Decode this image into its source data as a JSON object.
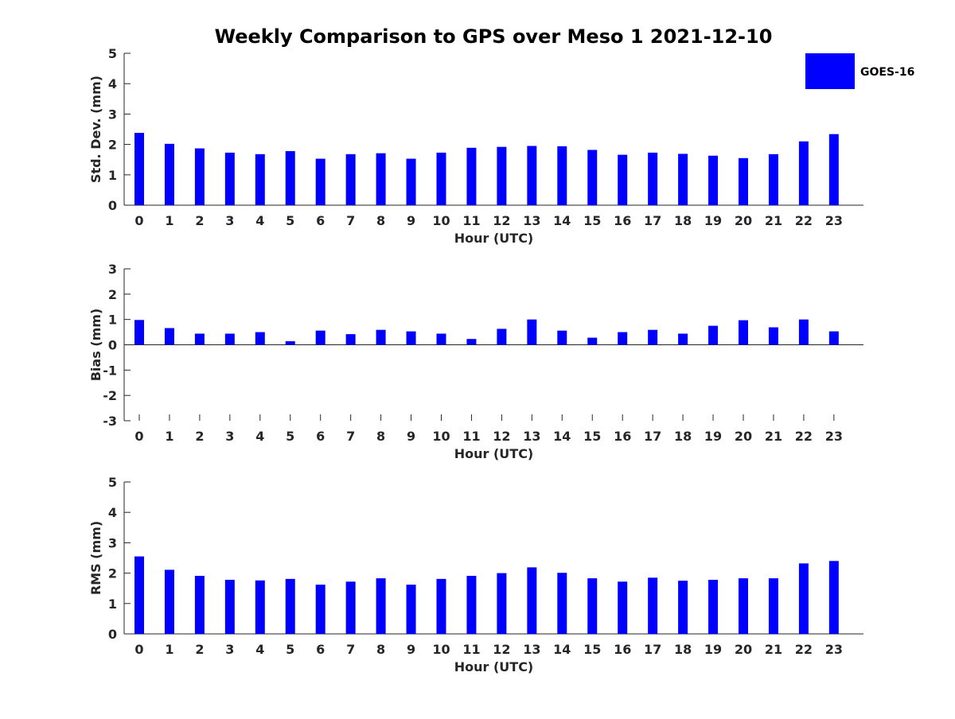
{
  "chart_data": {
    "type": "bar",
    "title": "Weekly Comparison to GPS over Meso 1 2021-12-10",
    "legend": {
      "label": "GOES-16",
      "color": "#0000ff",
      "placement": "top-right"
    },
    "categories": [
      "0",
      "1",
      "2",
      "3",
      "4",
      "5",
      "6",
      "7",
      "8",
      "9",
      "10",
      "11",
      "12",
      "13",
      "14",
      "15",
      "16",
      "17",
      "18",
      "19",
      "20",
      "21",
      "22",
      "23"
    ],
    "panels": [
      {
        "id": "stddev",
        "ylabel": "Std. Dev. (mm)",
        "xlabel": "Hour (UTC)",
        "ylim": [
          0,
          5
        ],
        "yticks": [
          "0",
          "1",
          "2",
          "3",
          "4",
          "5"
        ],
        "values": [
          2.38,
          2.02,
          1.87,
          1.73,
          1.68,
          1.78,
          1.53,
          1.68,
          1.71,
          1.53,
          1.73,
          1.89,
          1.92,
          1.95,
          1.94,
          1.82,
          1.66,
          1.73,
          1.69,
          1.63,
          1.55,
          1.68,
          2.1,
          2.34
        ]
      },
      {
        "id": "bias",
        "ylabel": "Bias (mm)",
        "xlabel": "Hour (UTC)",
        "ylim": [
          -3,
          3
        ],
        "yticks": [
          "-3",
          "-2",
          "-1",
          "0",
          "1",
          "2",
          "3"
        ],
        "values": [
          0.98,
          0.66,
          0.44,
          0.44,
          0.5,
          0.14,
          0.56,
          0.42,
          0.59,
          0.53,
          0.44,
          0.23,
          0.63,
          1.0,
          0.56,
          0.28,
          0.5,
          0.59,
          0.44,
          0.75,
          0.97,
          0.69,
          1.0,
          0.53
        ]
      },
      {
        "id": "rms",
        "ylabel": "RMS (mm)",
        "xlabel": "Hour (UTC)",
        "ylim": [
          0,
          5
        ],
        "yticks": [
          "0",
          "1",
          "2",
          "3",
          "4",
          "5"
        ],
        "values": [
          2.55,
          2.11,
          1.91,
          1.78,
          1.76,
          1.81,
          1.62,
          1.72,
          1.83,
          1.62,
          1.81,
          1.91,
          2.0,
          2.19,
          2.01,
          1.83,
          1.72,
          1.85,
          1.75,
          1.78,
          1.83,
          1.83,
          2.32,
          2.4
        ]
      }
    ]
  }
}
